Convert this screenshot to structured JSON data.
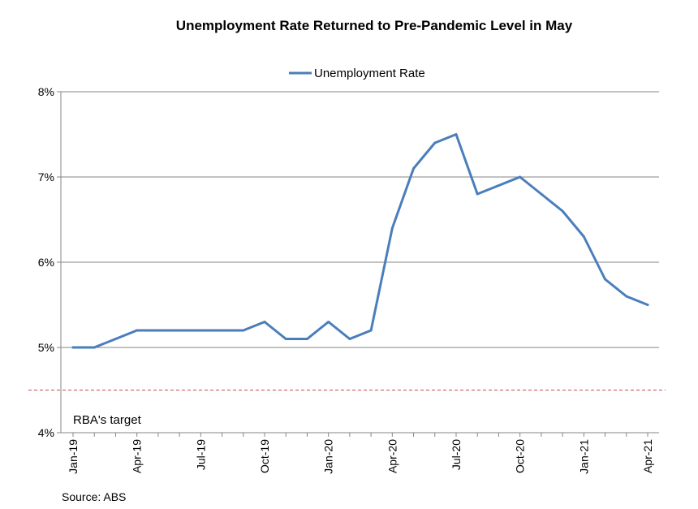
{
  "chart_data": {
    "type": "line",
    "title": "Unemployment Rate Returned to Pre-Pandemic Level in May",
    "xlabel": "",
    "ylabel": "",
    "x": [
      "Jan-19",
      "Feb-19",
      "Mar-19",
      "Apr-19",
      "May-19",
      "Jun-19",
      "Jul-19",
      "Aug-19",
      "Sep-19",
      "Oct-19",
      "Nov-19",
      "Dec-19",
      "Jan-20",
      "Feb-20",
      "Mar-20",
      "Apr-20",
      "May-20",
      "Jun-20",
      "Jul-20",
      "Aug-20",
      "Sep-20",
      "Oct-20",
      "Nov-20",
      "Dec-20",
      "Jan-21",
      "Feb-21",
      "Mar-21",
      "Apr-21"
    ],
    "x_tick_labels": [
      "Jan-19",
      "Apr-19",
      "Jul-19",
      "Oct-19",
      "Jan-20",
      "Apr-20",
      "Jul-20",
      "Oct-20",
      "Jan-21",
      "Apr-21"
    ],
    "series": [
      {
        "name": "Unemployment Rate",
        "color": "#4a7ebb",
        "values": [
          5.0,
          5.0,
          5.1,
          5.2,
          5.2,
          5.2,
          5.2,
          5.2,
          5.2,
          5.3,
          5.1,
          5.1,
          5.3,
          5.1,
          5.2,
          6.4,
          7.1,
          7.4,
          7.5,
          6.8,
          6.9,
          7.0,
          6.8,
          6.6,
          6.3,
          5.8,
          5.6,
          5.5
        ]
      }
    ],
    "ylim": [
      4,
      8
    ],
    "y_ticks": [
      4,
      5,
      6,
      7,
      8
    ],
    "y_tick_labels": [
      "4%",
      "5%",
      "6%",
      "7%",
      "8%"
    ],
    "reference_line": {
      "value": 4.5,
      "label": "RBA's target",
      "color": "#c0504d",
      "style": "dashed"
    },
    "legend": "top-center",
    "grid": true,
    "source": "Source: ABS"
  }
}
